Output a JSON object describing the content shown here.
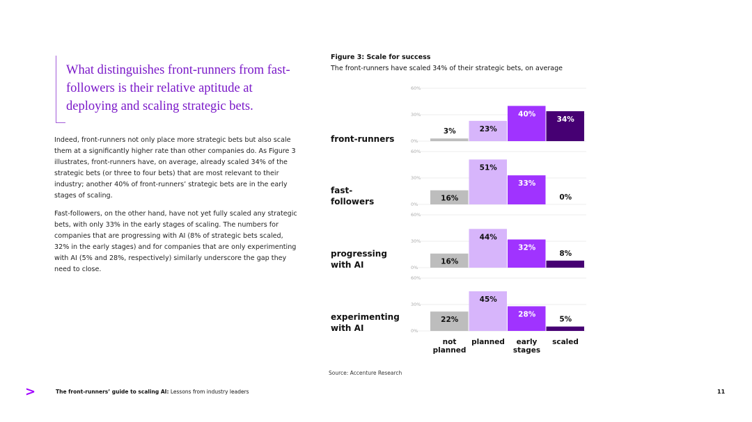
{
  "quote": "What distinguishes front-runners from fast-followers is their relative aptitude at deploying and scaling strategic bets.",
  "paragraphs": [
    "Indeed, front-runners not only place more strategic bets but also scale them at a significantly higher rate than other companies do. As Figure 3 illustrates, front-runners have, on average, already scaled 34% of the strategic bets (or three to four bets) that are most relevant to their industry; another 40% of front-runners’ strategic bets are in the early stages of scaling.",
    "Fast-followers, on the other hand, have not yet fully scaled any strategic bets, with only 33% in the early stages of scaling. The numbers for companies that are progressing with AI (8% of strategic bets scaled, 32% in the early stages) and for companies that are only experimenting with AI (5% and 28%, respectively) similarly underscore the gap they need to close."
  ],
  "figure": {
    "title": "Figure 3: Scale for success",
    "subtitle": "The front-runners have scaled 34% of their strategic bets, on average",
    "source": "Source: Accenture Research"
  },
  "footer": {
    "title": "The front-runners’ guide to scaling AI:",
    "subtitle": "Lessons from industry leaders",
    "page_number": "11"
  },
  "chart_data": [
    {
      "type": "bar",
      "title": "front-runners",
      "values": [
        3,
        23,
        40,
        34
      ],
      "value_labels": [
        "3%",
        "23%",
        "40%",
        "34%"
      ],
      "colors": [
        "#bdbdbd",
        "#d7b5fb",
        "#a033ff",
        "#460073"
      ],
      "ylim": [
        0,
        60
      ],
      "yticks": [
        {
          "value": 0,
          "label": "0%"
        },
        {
          "value": 30,
          "label": "30%"
        },
        {
          "value": 60,
          "label": "60%"
        }
      ],
      "grid": true
    },
    {
      "type": "bar",
      "title": "fast-followers",
      "values": [
        16,
        51,
        33,
        0
      ],
      "value_labels": [
        "16%",
        "51%",
        "33%",
        "0%"
      ],
      "colors": [
        "#bdbdbd",
        "#d7b5fb",
        "#a033ff",
        "#460073"
      ],
      "ylim": [
        0,
        60
      ],
      "yticks": [
        {
          "value": 0,
          "label": "0%"
        },
        {
          "value": 30,
          "label": "30%"
        },
        {
          "value": 60,
          "label": "60%"
        }
      ],
      "grid": true
    },
    {
      "type": "bar",
      "title": "progressing with AI",
      "values": [
        16,
        44,
        32,
        8
      ],
      "value_labels": [
        "16%",
        "44%",
        "32%",
        "8%"
      ],
      "colors": [
        "#bdbdbd",
        "#d7b5fb",
        "#a033ff",
        "#460073"
      ],
      "ylim": [
        0,
        60
      ],
      "yticks": [
        {
          "value": 0,
          "label": "0%"
        },
        {
          "value": 30,
          "label": "30%"
        },
        {
          "value": 60,
          "label": "60%"
        }
      ],
      "grid": true
    },
    {
      "type": "bar",
      "title": "experimenting with AI",
      "categories": [
        "not planned",
        "planned",
        "early stages",
        "scaled"
      ],
      "values": [
        22,
        45,
        28,
        5
      ],
      "value_labels": [
        "22%",
        "45%",
        "28%",
        "5%"
      ],
      "colors": [
        "#bdbdbd",
        "#d7b5fb",
        "#a033ff",
        "#460073"
      ],
      "ylim": [
        0,
        60
      ],
      "yticks": [
        {
          "value": 0,
          "label": "0%"
        },
        {
          "value": 30,
          "label": "30%"
        },
        {
          "value": 60,
          "label": "60%"
        }
      ],
      "grid": true
    }
  ]
}
